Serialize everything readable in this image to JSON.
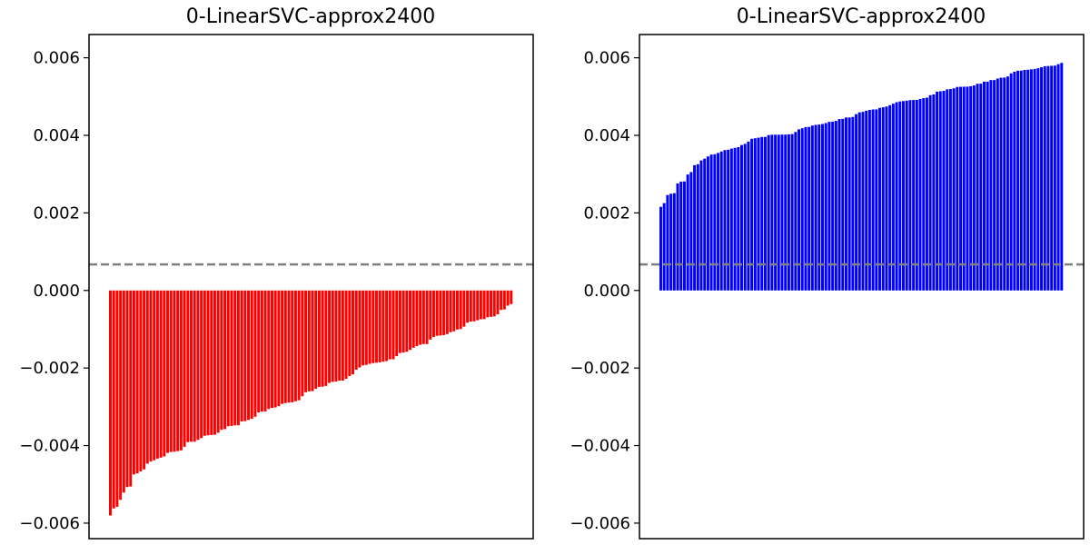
{
  "chart_data": [
    {
      "type": "bar",
      "title": "0-LinearSVC-approx2400",
      "xlabel": "",
      "ylabel": "",
      "ylim": [
        -0.0064,
        0.0066
      ],
      "yticks": [
        -0.006,
        -0.004,
        -0.002,
        0.0,
        0.002,
        0.004,
        0.006
      ],
      "ytick_labels": [
        "−0.006",
        "−0.004",
        "−0.002",
        "0.000",
        "0.002",
        "0.004",
        "0.006"
      ],
      "xticks_visible": false,
      "bar_color": "#ff0000",
      "reference_line": {
        "y": 0.00067,
        "style": "dashed",
        "color": "#808080"
      },
      "n_bars": 120,
      "values_description": "sorted ascending",
      "values_start": -0.0058,
      "values_end": -0.0004,
      "values": []
    },
    {
      "type": "bar",
      "title": "0-LinearSVC-approx2400",
      "xlabel": "",
      "ylabel": "",
      "ylim": [
        -0.0064,
        0.0066
      ],
      "yticks": [
        -0.006,
        -0.004,
        -0.002,
        0.0,
        0.002,
        0.004,
        0.006
      ],
      "ytick_labels": [
        "−0.006",
        "−0.004",
        "−0.002",
        "0.000",
        "0.002",
        "0.004",
        "0.006"
      ],
      "xticks_visible": false,
      "bar_color": "#0000ff",
      "reference_line": {
        "y": 0.00067,
        "style": "dashed",
        "color": "#808080"
      },
      "n_bars": 120,
      "values_description": "sorted ascending",
      "values_start": 0.0021,
      "values_end": 0.0059,
      "values": []
    }
  ]
}
